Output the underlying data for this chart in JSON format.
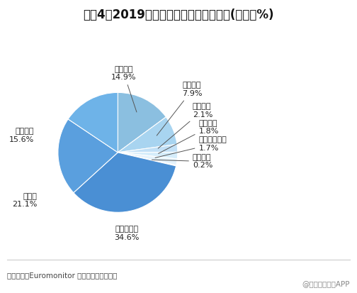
{
  "title": "图表4：2019年中国软饮料市场细分构成(单位：%)",
  "source_text": "资料来源：Euromonitor 前瞻产业研究院整理",
  "watermark": "@前瞻经济学人APP",
  "segments": [
    {
      "name": "碳酸饮料",
      "val_str": "14.9%",
      "value": 14.9,
      "color": "#8bbfe0"
    },
    {
      "name": "能量饮料",
      "val_str": "7.9%",
      "value": 7.9,
      "color": "#a8d4f0"
    },
    {
      "name": "运动饮料",
      "val_str": "2.1%",
      "value": 2.1,
      "color": "#c2e0f6"
    },
    {
      "name": "即饮咖啡",
      "val_str": "1.8%",
      "value": 1.8,
      "color": "#d5edfb"
    },
    {
      "name": "亚洲特色饮料",
      "val_str": "1.7%",
      "value": 1.7,
      "color": "#e5f3fc"
    },
    {
      "name": "浓缩饮料",
      "val_str": "0.2%",
      "value": 0.2,
      "color": "#c8c8c8"
    },
    {
      "name": "包装饮用水",
      "val_str": "34.6%",
      "value": 34.6,
      "color": "#4a8fd4"
    },
    {
      "name": "茶饮料",
      "val_str": "21.1%",
      "value": 21.1,
      "color": "#5a9fde"
    },
    {
      "name": "果汁软饮",
      "val_str": "15.6%",
      "value": 15.6,
      "color": "#6eb3e8"
    }
  ],
  "background_color": "#ffffff",
  "title_fontsize": 12,
  "label_fontsize": 8,
  "source_fontsize": 7.5
}
